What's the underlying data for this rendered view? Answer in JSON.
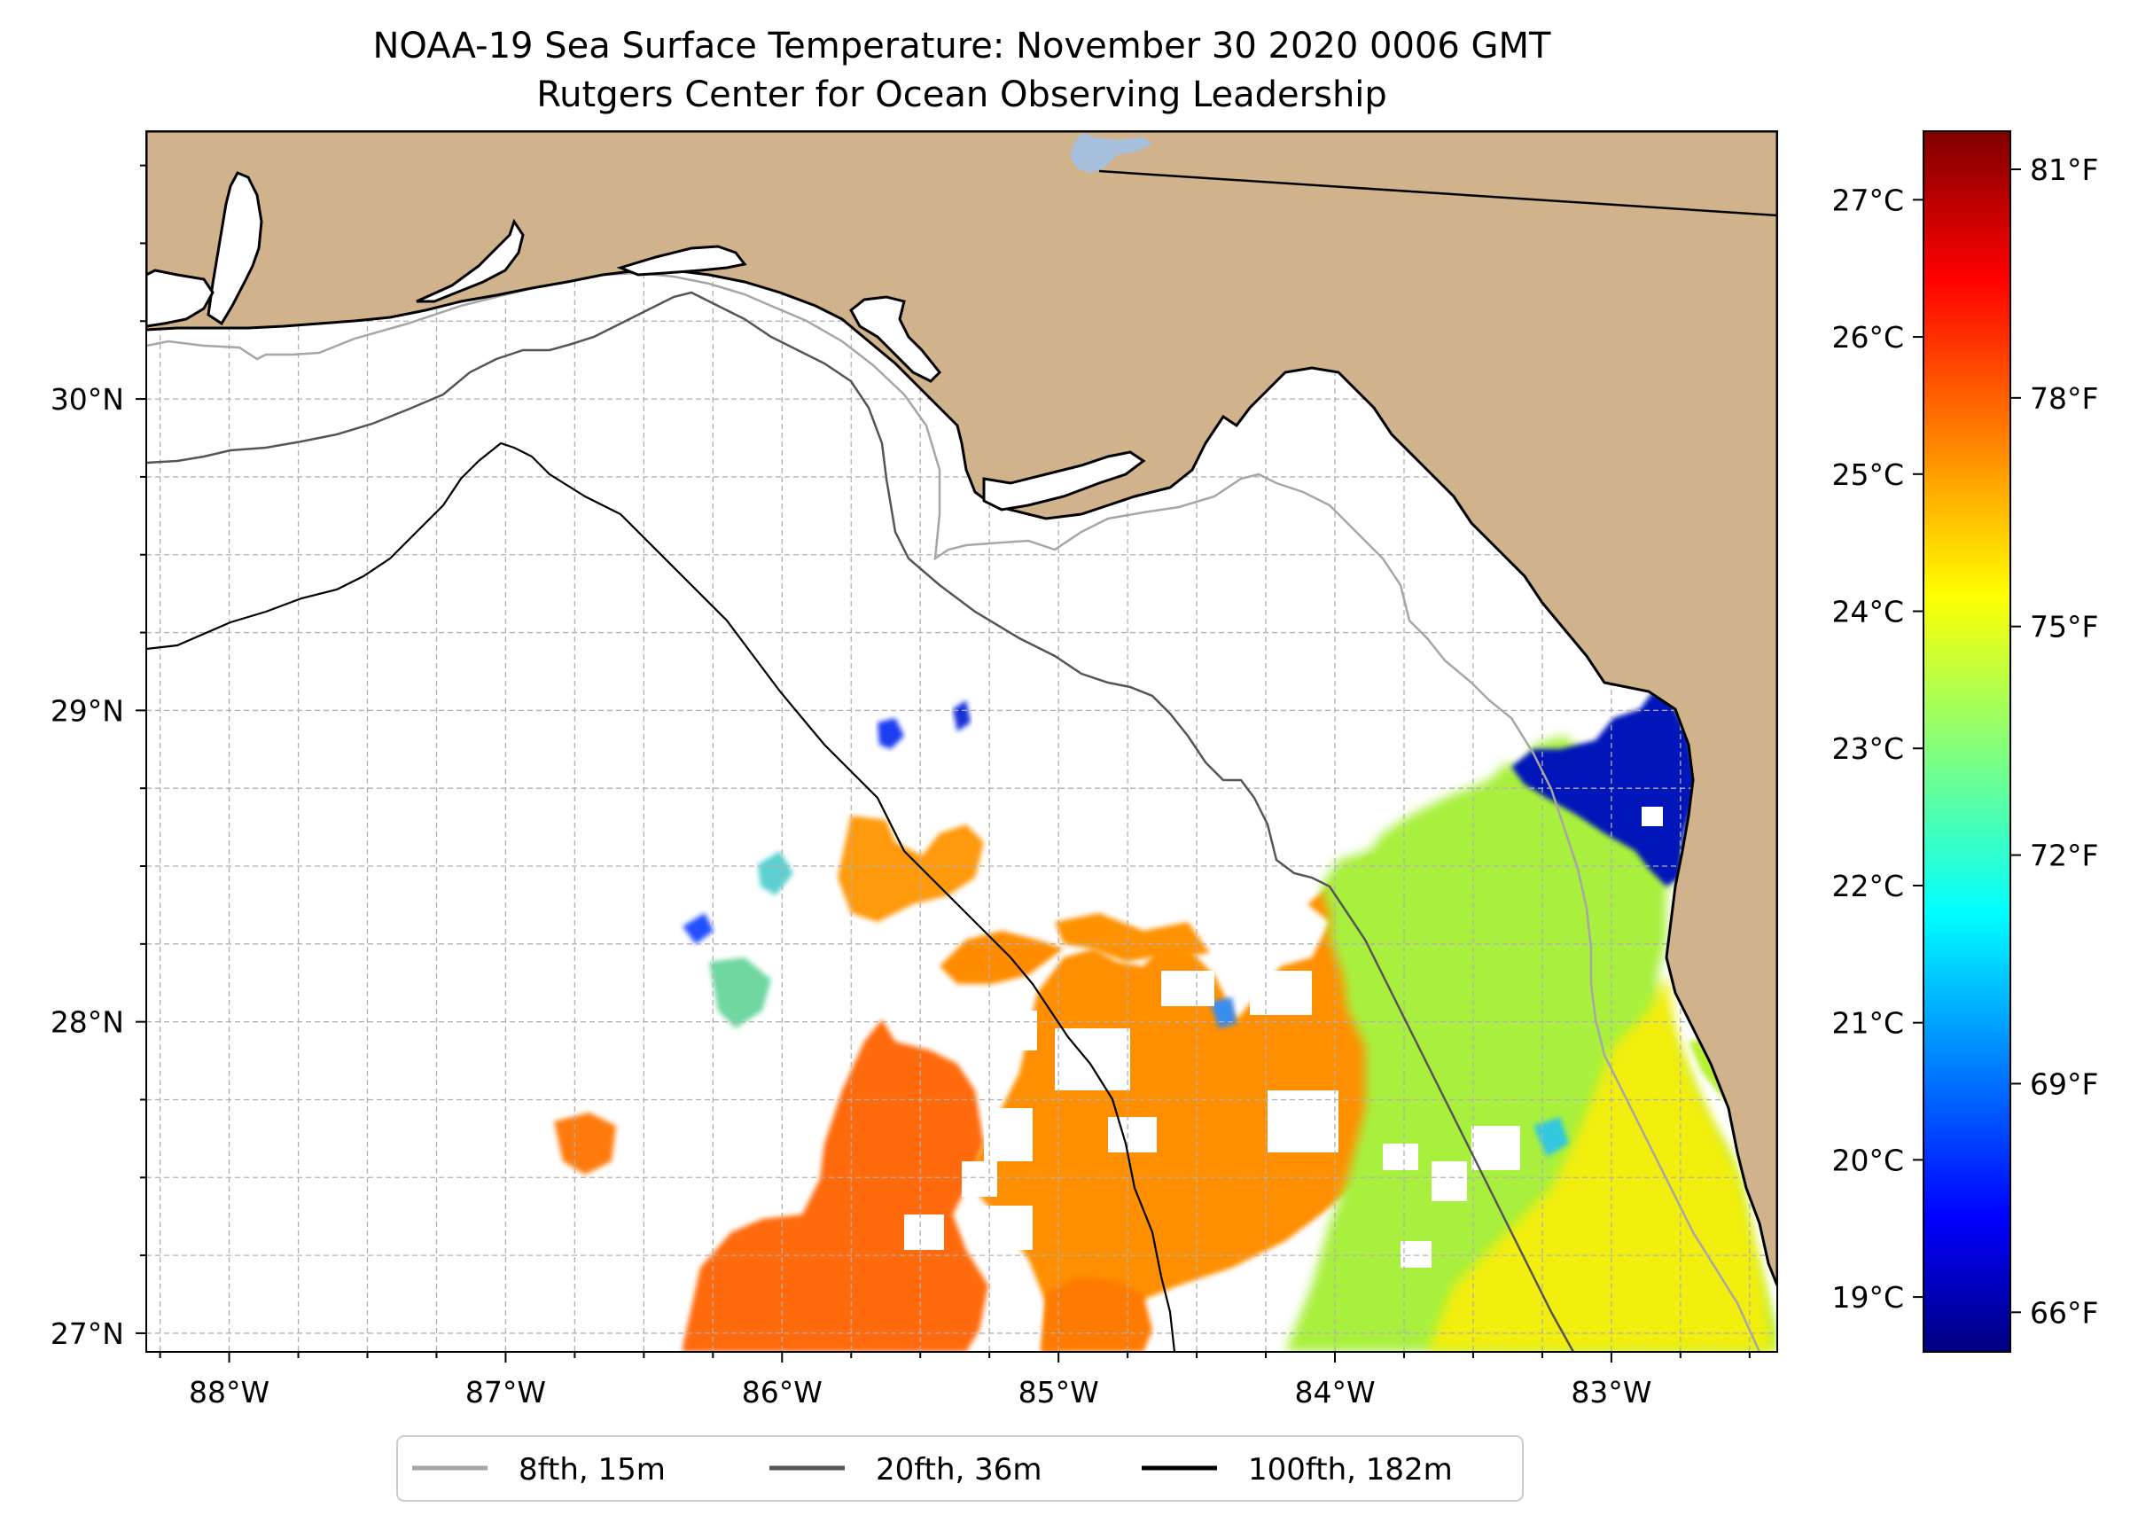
{
  "title": {
    "line1": "NOAA-19 Sea Surface Temperature: November 30 2020 0006 GMT",
    "line2": "Rutgers Center for Ocean Observing Leadership"
  },
  "map": {
    "lon_range": [
      -88.3,
      -82.4
    ],
    "lat_range": [
      26.94,
      30.86
    ],
    "longitude_ticks": [
      "88°W",
      "87°W",
      "86°W",
      "85°W",
      "84°W",
      "83°W"
    ],
    "latitude_ticks": [
      "27°N",
      "28°N",
      "29°N",
      "30°N"
    ],
    "land_color": "#d0b38c",
    "ocean_color": "#ffffff",
    "lake_color": "#a5bfdd"
  },
  "colorbar": {
    "celsius_ticks": [
      "19°C",
      "20°C",
      "21°C",
      "22°C",
      "23°C",
      "24°C",
      "25°C",
      "26°C",
      "27°C"
    ],
    "fahrenheit_ticks": [
      "66°F",
      "69°F",
      "72°F",
      "75°F",
      "78°F",
      "81°F"
    ],
    "celsius_range": [
      18.6,
      27.5
    ],
    "colormap": "jet"
  },
  "legend": {
    "items": [
      {
        "label": "8fth, 15m",
        "color": "#a6a6a6"
      },
      {
        "label": "20fth, 36m",
        "color": "#555555"
      },
      {
        "label": "100fth, 182m",
        "color": "#000000"
      }
    ]
  }
}
